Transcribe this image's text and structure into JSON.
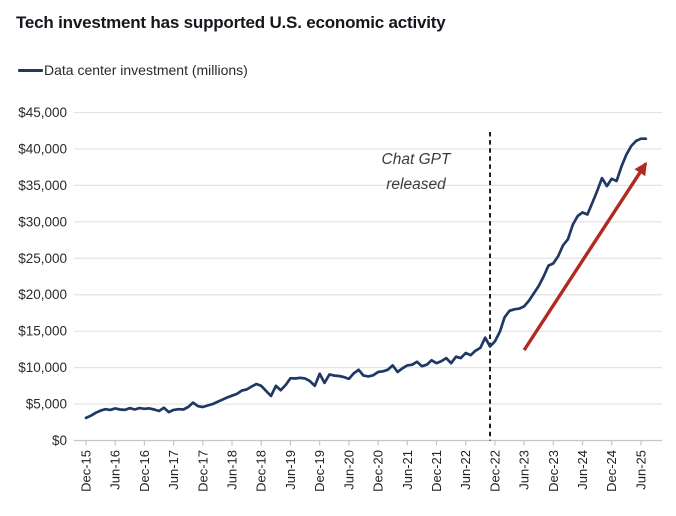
{
  "title": "Tech investment has supported U.S. economic activity",
  "legend": {
    "label": "Data center investment (millions)",
    "swatch_color": "#1f3864"
  },
  "annotation": {
    "line1": "Chat GPT",
    "line2": "released"
  },
  "colors": {
    "series_line": "#1f3864",
    "trend_arrow": "#b02a20",
    "event_dashed_line": "#141414",
    "gridline": "#e2e2e0",
    "axis_line": "#c6c6c4",
    "axis_text": "#2b2b2b",
    "title_text": "#16161d",
    "annotation_text": "#3c3c3c",
    "background": "#ffffff"
  },
  "chart_data": {
    "type": "line",
    "title": "Tech investment has supported U.S. economic activity",
    "ylabel": "",
    "xlabel": "",
    "ylim": [
      0,
      45000
    ],
    "y_tick_step": 5000,
    "grid": "horizontal",
    "legend_position": "top-left",
    "y_tick_labels": [
      "$0",
      "$5,000",
      "$10,000",
      "$15,000",
      "$20,000",
      "$25,000",
      "$30,000",
      "$35,000",
      "$40,000",
      "$45,000"
    ],
    "x_tick_labels": [
      "Dec-15",
      "Jun-16",
      "Dec-16",
      "Jun-17",
      "Dec-17",
      "Jun-18",
      "Dec-18",
      "Jun-19",
      "Dec-19",
      "Jun-20",
      "Dec-20",
      "Jun-21",
      "Dec-21",
      "Jun-22",
      "Dec-22",
      "Jun-23",
      "Dec-23",
      "Jun-24",
      "Dec-24",
      "Jun-25"
    ],
    "x": [
      "Dec-15",
      "Jan-16",
      "Feb-16",
      "Mar-16",
      "Apr-16",
      "May-16",
      "Jun-16",
      "Jul-16",
      "Aug-16",
      "Sep-16",
      "Oct-16",
      "Nov-16",
      "Dec-16",
      "Jan-17",
      "Feb-17",
      "Mar-17",
      "Apr-17",
      "May-17",
      "Jun-17",
      "Jul-17",
      "Aug-17",
      "Sep-17",
      "Oct-17",
      "Nov-17",
      "Dec-17",
      "Jan-18",
      "Feb-18",
      "Mar-18",
      "Apr-18",
      "May-18",
      "Jun-18",
      "Jul-18",
      "Aug-18",
      "Sep-18",
      "Oct-18",
      "Nov-18",
      "Dec-18",
      "Jan-19",
      "Feb-19",
      "Mar-19",
      "Apr-19",
      "May-19",
      "Jun-19",
      "Jul-19",
      "Aug-19",
      "Sep-19",
      "Oct-19",
      "Nov-19",
      "Dec-19",
      "Jan-20",
      "Feb-20",
      "Mar-20",
      "Apr-20",
      "May-20",
      "Jun-20",
      "Jul-20",
      "Aug-20",
      "Sep-20",
      "Oct-20",
      "Nov-20",
      "Dec-20",
      "Jan-21",
      "Feb-21",
      "Mar-21",
      "Apr-21",
      "May-21",
      "Jun-21",
      "Jul-21",
      "Aug-21",
      "Sep-21",
      "Oct-21",
      "Nov-21",
      "Dec-21",
      "Jan-22",
      "Feb-22",
      "Mar-22",
      "Apr-22",
      "May-22",
      "Jun-22",
      "Jul-22",
      "Aug-22",
      "Sep-22",
      "Oct-22",
      "Nov-22",
      "Dec-22",
      "Jan-23",
      "Feb-23",
      "Mar-23",
      "Apr-23",
      "May-23",
      "Jun-23",
      "Jul-23",
      "Aug-23",
      "Sep-23",
      "Oct-23",
      "Nov-23",
      "Dec-23",
      "Jan-24",
      "Feb-24",
      "Mar-24",
      "Apr-24",
      "May-24",
      "Jun-24",
      "Jul-24",
      "Aug-24",
      "Sep-24",
      "Oct-24",
      "Nov-24",
      "Dec-24",
      "Jan-25",
      "Feb-25",
      "Mar-25",
      "Apr-25",
      "May-25",
      "Jun-25",
      "Jul-25"
    ],
    "series": [
      {
        "name": "Data center investment (millions)",
        "color": "#1f3864",
        "values": [
          3100,
          3400,
          3800,
          4100,
          4300,
          4200,
          4400,
          4250,
          4200,
          4450,
          4250,
          4450,
          4350,
          4400,
          4250,
          4050,
          4500,
          3900,
          4200,
          4300,
          4250,
          4600,
          5200,
          4700,
          4600,
          4800,
          5000,
          5300,
          5600,
          5900,
          6150,
          6400,
          6850,
          7000,
          7400,
          7750,
          7500,
          6800,
          6100,
          7500,
          6900,
          7600,
          8550,
          8500,
          8600,
          8500,
          8150,
          7500,
          9150,
          7900,
          9050,
          8900,
          8850,
          8700,
          8450,
          9200,
          9700,
          8900,
          8800,
          8950,
          9400,
          9500,
          9700,
          10300,
          9400,
          9900,
          10300,
          10400,
          10800,
          10200,
          10400,
          11000,
          10600,
          10900,
          11300,
          10600,
          11500,
          11300,
          12000,
          11700,
          12300,
          12700,
          14100,
          12900,
          13600,
          14900,
          16900,
          17800,
          18000,
          18100,
          18400,
          19200,
          20200,
          21200,
          22500,
          24000,
          24300,
          25300,
          26800,
          27600,
          29600,
          30800,
          31300,
          31000,
          32600,
          34200,
          36000,
          34900,
          35900,
          35600,
          37600,
          39200,
          40400,
          41100,
          41400,
          41400
        ]
      }
    ],
    "event_line": {
      "label": "Chat GPT released",
      "month": "Nov-22",
      "style": "dashed-vertical"
    },
    "trend_arrow": {
      "color": "#b02a20",
      "from_month": "Jun-23",
      "from_value": 12400,
      "to_month": "Jul-25",
      "to_value": 38000
    }
  }
}
